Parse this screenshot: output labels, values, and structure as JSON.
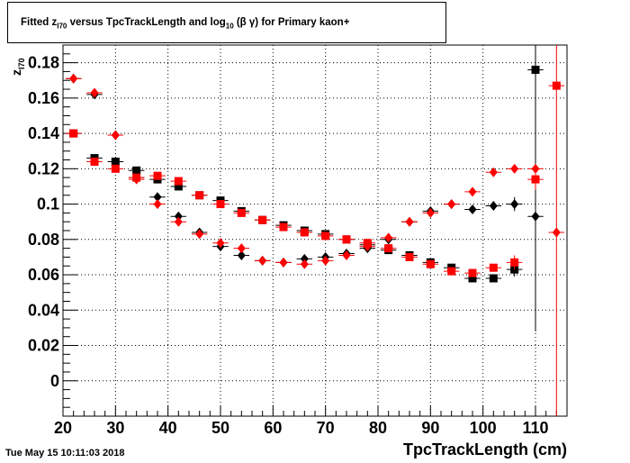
{
  "title": {
    "prefix": "Fitted  z",
    "sub1": "I70",
    "middle": "  versus TpcTrackLength and log",
    "sub2": "10",
    "suffix": " (β γ) for Primary kaon+"
  },
  "timestamp": "Tue May 15 10:11:03 2018",
  "chart_data": {
    "type": "scatter",
    "xlabel": "TpcTrackLength (cm)",
    "ylabel": {
      "main": "z",
      "sub": "I70"
    },
    "xlim": [
      20,
      116
    ],
    "ylim": [
      -0.02,
      0.19
    ],
    "x_ticks": [
      20,
      30,
      40,
      50,
      60,
      70,
      80,
      90,
      100,
      110
    ],
    "y_ticks": [
      0,
      0.02,
      0.04,
      0.06,
      0.08,
      0.1,
      0.12,
      0.14,
      0.16,
      0.18
    ],
    "x_tick_labels": [
      "20",
      "30",
      "40",
      "50",
      "60",
      "70",
      "80",
      "90",
      "100",
      "110"
    ],
    "y_tick_labels": [
      "0",
      "0.02",
      "0.04",
      "0.06",
      "0.08",
      "0.1",
      "0.12",
      "0.14",
      "0.16",
      "0.18"
    ],
    "grid": true,
    "bin_half_width": 1.5,
    "series": [
      {
        "marker": "square",
        "color": "#000000",
        "x": [
          22,
          26,
          30,
          34,
          38,
          42,
          46,
          50,
          54,
          58,
          62,
          66,
          70,
          74,
          78,
          82,
          86,
          90,
          94,
          98,
          102,
          106,
          110
        ],
        "y": [
          0.14,
          0.126,
          0.124,
          0.119,
          0.114,
          0.11,
          0.105,
          0.102,
          0.096,
          0.091,
          0.088,
          0.085,
          0.083,
          0.08,
          0.077,
          0.074,
          0.071,
          0.067,
          0.064,
          0.058,
          0.058,
          0.063,
          0.176
        ],
        "yerr": [
          0.001,
          0.001,
          0.001,
          0.001,
          0.001,
          0.001,
          0.001,
          0.001,
          0.001,
          0.001,
          0.001,
          0.001,
          0.001,
          0.001,
          0.001,
          0.001,
          0.001,
          0.001,
          0.001,
          0.001,
          0.002,
          0.004,
          0.148
        ]
      },
      {
        "marker": "diamond",
        "color": "#000000",
        "x": [
          22,
          26,
          30,
          34,
          38,
          42,
          46,
          50,
          54,
          58,
          62,
          66,
          70,
          74,
          78,
          82,
          86,
          90,
          94,
          98,
          102,
          106,
          110
        ],
        "y": [
          0.171,
          0.162,
          0.139,
          0.115,
          0.104,
          0.093,
          0.084,
          0.076,
          0.071,
          0.068,
          0.067,
          0.069,
          0.07,
          0.072,
          0.075,
          0.08,
          0.09,
          0.096,
          0.1,
          0.097,
          0.099,
          0.1,
          0.093
        ],
        "yerr": [
          0.001,
          0.001,
          0.001,
          0.001,
          0.001,
          0.001,
          0.001,
          0.001,
          0.001,
          0.001,
          0.001,
          0.001,
          0.001,
          0.001,
          0.001,
          0.001,
          0.001,
          0.001,
          0.001,
          0.002,
          0.002,
          0.004,
          0.006
        ]
      },
      {
        "marker": "square",
        "color": "#ff0000",
        "x": [
          22,
          26,
          30,
          34,
          38,
          42,
          46,
          50,
          54,
          58,
          62,
          66,
          70,
          74,
          78,
          82,
          86,
          90,
          94,
          98,
          102,
          106,
          110,
          114
        ],
        "y": [
          0.14,
          0.124,
          0.12,
          0.115,
          0.116,
          0.113,
          0.105,
          0.1,
          0.095,
          0.091,
          0.087,
          0.084,
          0.082,
          0.08,
          0.078,
          0.075,
          0.07,
          0.066,
          0.062,
          0.061,
          0.064,
          0.067,
          0.114,
          0.167
        ],
        "yerr": [
          0.001,
          0.001,
          0.001,
          0.001,
          0.001,
          0.001,
          0.001,
          0.001,
          0.001,
          0.001,
          0.001,
          0.001,
          0.001,
          0.001,
          0.001,
          0.001,
          0.001,
          0.001,
          0.001,
          0.001,
          0.002,
          0.004,
          0.006,
          0.19
        ]
      },
      {
        "marker": "diamond",
        "color": "#ff0000",
        "x": [
          22,
          26,
          30,
          34,
          38,
          42,
          46,
          50,
          54,
          58,
          62,
          66,
          70,
          74,
          78,
          82,
          86,
          90,
          94,
          98,
          102,
          106,
          110,
          114
        ],
        "y": [
          0.171,
          0.163,
          0.139,
          0.114,
          0.1,
          0.09,
          0.083,
          0.078,
          0.075,
          0.068,
          0.067,
          0.066,
          0.068,
          0.071,
          0.076,
          0.081,
          0.09,
          0.095,
          0.1,
          0.107,
          0.118,
          0.12,
          0.12,
          0.084
        ]
      }
    ]
  }
}
